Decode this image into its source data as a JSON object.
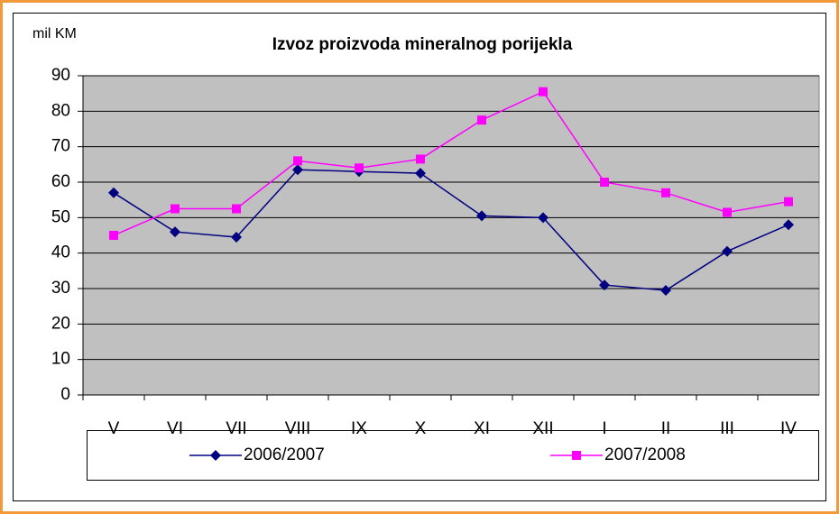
{
  "chart_data": {
    "type": "line",
    "title": "Izvoz proizvoda mineralnog porijekla",
    "y_label": "mil KM",
    "categories": [
      "V",
      "VI",
      "VII",
      "VIII",
      "IX",
      "X",
      "XI",
      "XII",
      "I",
      "II",
      "III",
      "IV"
    ],
    "series": [
      {
        "name": "2006/2007",
        "color": "#000080",
        "marker": "diamond",
        "values": [
          57,
          46,
          44.5,
          63.5,
          63,
          62.5,
          50.5,
          50,
          31,
          29.5,
          40.5,
          48
        ]
      },
      {
        "name": "2007/2008",
        "color": "#ff00ff",
        "marker": "square",
        "values": [
          45,
          52.5,
          52.5,
          66,
          64,
          66.5,
          77.5,
          85.5,
          60,
          57,
          51.5,
          54.5
        ]
      }
    ],
    "ylim": [
      0,
      90
    ],
    "yticks": [
      0,
      10,
      20,
      30,
      40,
      50,
      60,
      70,
      80,
      90
    ],
    "grid": true,
    "legend": "bottom"
  }
}
